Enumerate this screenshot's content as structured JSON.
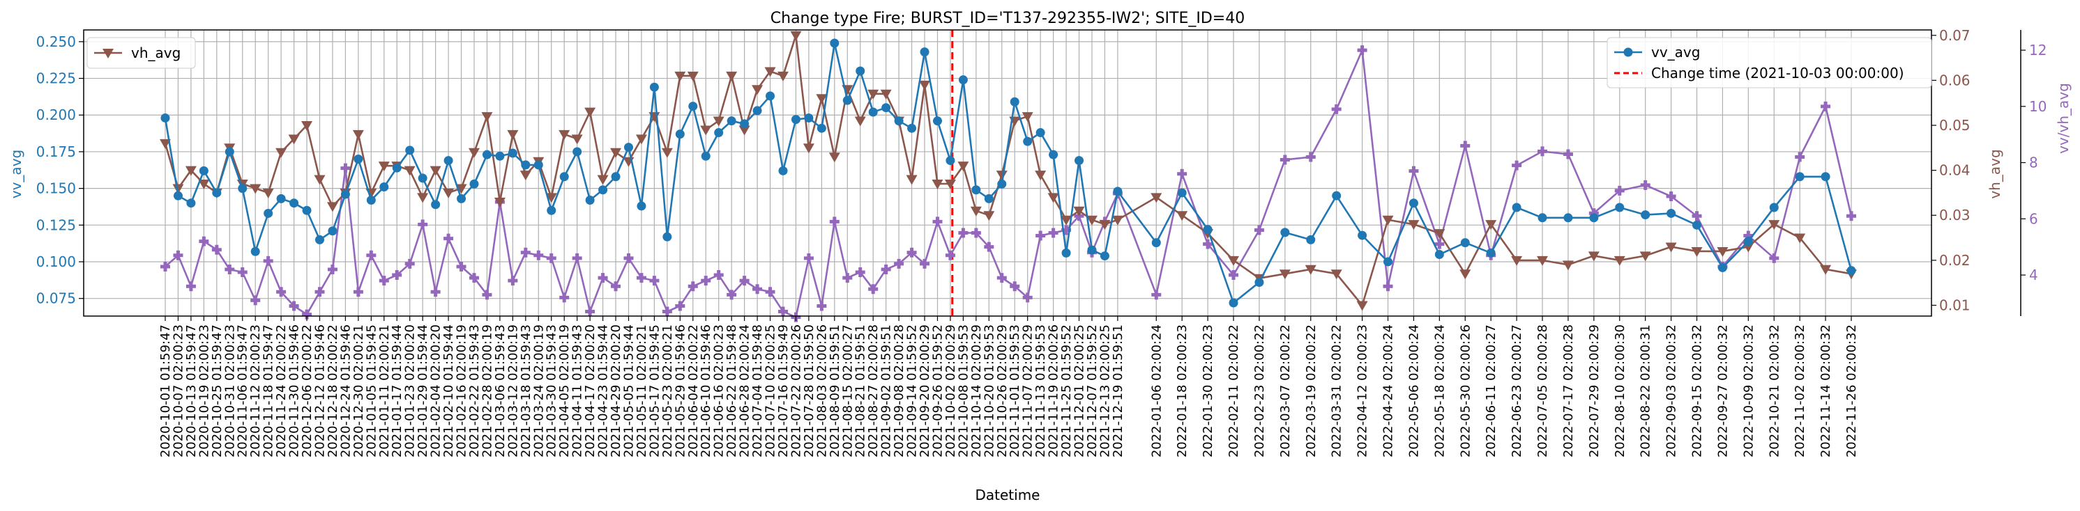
{
  "chart_data": {
    "type": "line",
    "title": "Change type Fire; BURST_ID='T137-292355-IW2'; SITE_ID=40",
    "xlabel": "Datetime",
    "ylabel_left": "vv_avg",
    "ylabel_right": "vh_avg",
    "ylabel_right2": "vv/vh_avg",
    "ylim_left": [
      0.063,
      0.258
    ],
    "ylim_right": [
      0.0076,
      0.0712
    ],
    "ylim_right2": [
      2.54,
      12.72
    ],
    "yticks_left": [
      "0.075",
      "0.100",
      "0.125",
      "0.150",
      "0.175",
      "0.200",
      "0.225",
      "0.250"
    ],
    "yticks_right": [
      "0.01",
      "0.02",
      "0.03",
      "0.04",
      "0.05",
      "0.06",
      "0.07"
    ],
    "yticks_right2": [
      "4",
      "6",
      "8",
      "10",
      "12"
    ],
    "grid": true,
    "change_time_label": "Change time (2021-10-03 00:00:00)",
    "change_time": "2021-10-03 00:00:00",
    "legend_left": "top-left",
    "legend_right": "top-right",
    "colors": {
      "vv": "#1f77b4",
      "vh": "#8c564b",
      "ratio": "#9467bd",
      "change": "#ff0000"
    },
    "dates": [
      "2020-10-01 01:59:47",
      "2020-10-07 02:00:23",
      "2020-10-13 01:59:47",
      "2020-10-19 02:00:23",
      "2020-10-25 01:59:47",
      "2020-10-31 02:00:23",
      "2020-11-06 01:59:47",
      "2020-11-12 02:00:23",
      "2020-11-18 01:59:47",
      "2020-11-24 02:00:22",
      "2020-11-30 01:59:46",
      "2020-12-06 02:00:22",
      "2020-12-12 01:59:46",
      "2020-12-18 02:00:22",
      "2020-12-24 01:59:46",
      "2020-12-30 02:00:21",
      "2021-01-05 01:59:45",
      "2021-01-11 02:00:21",
      "2021-01-17 01:59:44",
      "2021-01-23 02:00:20",
      "2021-01-29 01:59:44",
      "2021-02-04 02:00:20",
      "2021-02-10 01:59:44",
      "2021-02-16 02:00:19",
      "2021-02-22 01:59:43",
      "2021-02-28 02:00:19",
      "2021-03-06 01:59:43",
      "2021-03-12 02:00:19",
      "2021-03-18 01:59:43",
      "2021-03-24 02:00:19",
      "2021-03-30 01:59:43",
      "2021-04-05 02:00:19",
      "2021-04-11 01:59:43",
      "2021-04-17 02:00:20",
      "2021-04-23 01:59:44",
      "2021-04-29 02:00:20",
      "2021-05-05 01:59:44",
      "2021-05-11 02:00:21",
      "2021-05-17 01:59:45",
      "2021-05-23 02:00:21",
      "2021-05-29 01:59:46",
      "2021-06-04 02:00:22",
      "2021-06-10 01:59:46",
      "2021-06-16 02:00:23",
      "2021-06-22 01:59:48",
      "2021-06-28 02:00:24",
      "2021-07-04 01:59:48",
      "2021-07-10 02:00:25",
      "2021-07-16 01:59:49",
      "2021-07-22 02:00:26",
      "2021-07-28 01:59:50",
      "2021-08-03 02:00:26",
      "2021-08-09 01:59:51",
      "2021-08-15 02:00:27",
      "2021-08-21 01:59:51",
      "2021-08-27 02:00:28",
      "2021-09-02 01:59:51",
      "2021-09-08 02:00:28",
      "2021-09-14 01:59:52",
      "2021-09-20 02:00:29",
      "2021-09-26 01:59:52",
      "2021-10-02 02:00:29",
      "2021-10-08 01:59:53",
      "2021-10-14 02:00:29",
      "2021-10-20 01:59:53",
      "2021-10-26 02:00:29",
      "2021-11-01 01:59:53",
      "2021-11-07 02:00:29",
      "2021-11-13 01:59:53",
      "2021-11-19 02:00:26",
      "2021-11-25 01:59:52",
      "2021-12-01 02:00:25",
      "2021-12-07 01:59:52",
      "2021-12-13 02:00:25",
      "2021-12-19 01:59:51",
      "2022-01-06 02:00:24",
      "2022-01-18 02:00:23",
      "2022-01-30 02:00:23",
      "2022-02-11 02:00:22",
      "2022-02-23 02:00:22",
      "2022-03-07 02:00:22",
      "2022-03-19 02:00:22",
      "2022-03-31 02:00:22",
      "2022-04-12 02:00:23",
      "2022-04-24 02:00:24",
      "2022-05-06 02:00:24",
      "2022-05-18 02:00:24",
      "2022-05-30 02:00:26",
      "2022-06-11 02:00:27",
      "2022-06-23 02:00:27",
      "2022-07-05 02:00:28",
      "2022-07-17 02:00:28",
      "2022-07-29 02:00:29",
      "2022-08-10 02:00:30",
      "2022-08-22 02:00:31",
      "2022-09-03 02:00:32",
      "2022-09-15 02:00:32",
      "2022-09-27 02:00:32",
      "2022-10-09 02:00:32",
      "2022-10-21 02:00:32",
      "2022-11-02 02:00:32",
      "2022-11-14 02:00:32",
      "2022-11-26 02:00:32"
    ],
    "xtick_labels": [
      "2020-10-01 01:59:47",
      "2020-10-07 02:00:23",
      "2020-10-13 01:59:47",
      "2020-10-19 02:00:23",
      "2020-10-25 01:59:47",
      "2020-10-31 02:00:23",
      "2020-11-06 01:59:47",
      "2020-11-12 02:00:23",
      "2020-11-18 01:59:47",
      "2020-11-24 02:00:22",
      "2020-11-30 01:59:46",
      "2020-12-06 02:00:22",
      "2020-12-12 01:59:46",
      "2020-12-18 02:00:22",
      "2020-12-24 01:59:46",
      "2020-12-30 02:00:21",
      "2021-01-05 01:59:45",
      "2021-01-11 02:00:21",
      "2021-01-17 01:59:44",
      "2021-01-23 02:00:20",
      "2021-01-29 01:59:44",
      "2021-02-04 02:00:20",
      "2021-02-10 01:59:44",
      "2021-02-16 02:00:19",
      "2021-02-22 01:59:43",
      "2021-02-28 02:00:19",
      "2021-03-06 01:59:43",
      "2021-03-12 02:00:19",
      "2021-03-18 01:59:43",
      "2021-03-24 02:00:19",
      "2021-03-30 01:59:43",
      "2021-04-05 02:00:19",
      "2021-04-11 01:59:43",
      "2021-04-17 02:00:20",
      "2021-04-23 01:59:44",
      "2021-04-29 02:00:20",
      "2021-05-05 01:59:44",
      "2021-05-11 02:00:21",
      "2021-05-17 01:59:45",
      "2021-05-23 02:00:21",
      "2021-05-29 01:59:46",
      "2021-06-04 02:00:22",
      "2021-06-10 01:59:46",
      "2021-06-16 02:00:23",
      "2021-06-22 01:59:48",
      "2021-06-28 02:00:24",
      "2021-07-04 01:59:48",
      "2021-07-10 02:00:25",
      "2021-07-16 01:59:49",
      "2021-07-22 02:00:26",
      "2021-07-28 01:59:50",
      "2021-08-03 02:00:26",
      "2021-08-09 01:59:51",
      "2021-08-15 02:00:27",
      "2021-08-21 01:59:51",
      "2021-08-27 02:00:28",
      "2021-09-02 01:59:51",
      "2021-09-08 02:00:28",
      "2021-09-14 01:59:52",
      "2021-09-20 02:00:29",
      "2021-09-26 01:59:52",
      "2021-10-02 02:00:29",
      "2021-10-08 01:59:53",
      "2021-10-14 02:00:29",
      "2021-10-20 01:59:53",
      "2021-10-26 02:00:29",
      "2021-11-01 01:59:53",
      "2021-11-07 02:00:29",
      "2021-11-13 01:59:53",
      "2021-11-19 02:00:26",
      "2021-11-25 01:59:52",
      "2021-12-01 02:00:25",
      "2021-12-07 01:59:52",
      "2021-12-13 02:00:25",
      "2021-12-19 01:59:51",
      "2022-01-06 02:00:24",
      "2022-01-18 02:00:23",
      "2022-01-30 02:00:23",
      "2022-02-11 02:00:22",
      "2022-02-23 02:00:22",
      "2022-03-07 02:00:22",
      "2022-03-19 02:00:22",
      "2022-03-31 02:00:22",
      "2022-04-12 02:00:23",
      "2022-04-24 02:00:24",
      "2022-05-06 02:00:24",
      "2022-05-18 02:00:24",
      "2022-05-30 02:00:26",
      "2022-06-11 02:00:27",
      "2022-06-23 02:00:27",
      "2022-07-05 02:00:28",
      "2022-07-17 02:00:28",
      "2022-07-29 02:00:29",
      "2022-08-10 02:00:30",
      "2022-08-22 02:00:31",
      "2022-09-03 02:00:32",
      "2022-09-15 02:00:32",
      "2022-09-27 02:00:32",
      "2022-10-09 02:00:32",
      "2022-10-21 02:00:32",
      "2022-11-02 02:00:32",
      "2022-11-14 02:00:32",
      "2022-11-26 02:00:32"
    ],
    "series": [
      {
        "name": "vv_avg",
        "axis": "left",
        "marker": "circle",
        "values": [
          0.198,
          0.145,
          0.14,
          0.162,
          0.147,
          0.175,
          0.15,
          0.107,
          0.133,
          0.143,
          0.14,
          0.135,
          0.115,
          0.121,
          0.146,
          0.17,
          0.142,
          0.151,
          0.164,
          0.176,
          0.157,
          0.139,
          0.169,
          0.143,
          0.153,
          0.173,
          0.172,
          0.174,
          0.166,
          0.166,
          0.135,
          0.158,
          0.175,
          0.142,
          0.149,
          0.158,
          0.178,
          0.138,
          0.219,
          0.117,
          0.187,
          0.206,
          0.172,
          0.188,
          0.196,
          0.194,
          0.203,
          0.213,
          0.162,
          0.197,
          0.198,
          0.191,
          0.249,
          0.21,
          0.23,
          0.202,
          0.205,
          0.196,
          0.191,
          0.243,
          0.196,
          0.169,
          0.224,
          0.149,
          0.143,
          0.153,
          0.209,
          0.182,
          0.188,
          0.173,
          0.106,
          0.169,
          0.108,
          0.104,
          0.148,
          0.113,
          0.147,
          0.122,
          0.072,
          0.086,
          0.12,
          0.115,
          0.145,
          0.118,
          0.1,
          0.14,
          0.105,
          0.113,
          0.106,
          0.137,
          0.13,
          0.13,
          0.13,
          0.137,
          0.132,
          0.133,
          0.125,
          0.096,
          0.114,
          0.137,
          0.158,
          0.158,
          0.094
        ]
      },
      {
        "name": "vh_avg",
        "axis": "right",
        "marker": "triangle-down",
        "values": [
          0.046,
          0.036,
          0.04,
          0.037,
          0.035,
          0.045,
          0.037,
          0.036,
          0.035,
          0.044,
          0.047,
          0.05,
          0.038,
          0.032,
          0.035,
          0.048,
          0.035,
          0.041,
          0.041,
          0.04,
          0.034,
          0.04,
          0.035,
          0.036,
          0.044,
          0.052,
          0.033,
          0.048,
          0.039,
          0.042,
          0.034,
          0.048,
          0.047,
          0.053,
          0.038,
          0.044,
          0.042,
          0.047,
          0.052,
          0.044,
          0.061,
          0.061,
          0.049,
          0.051,
          0.061,
          0.049,
          0.058,
          0.062,
          0.061,
          0.07,
          0.045,
          0.056,
          0.043,
          0.058,
          0.051,
          0.057,
          0.057,
          0.051,
          0.038,
          0.059,
          0.037,
          0.037,
          0.041,
          0.031,
          0.03,
          0.039,
          0.051,
          0.052,
          0.039,
          0.034,
          0.029,
          0.031,
          0.029,
          0.028,
          0.029,
          0.034,
          0.03,
          0.026,
          0.02,
          0.016,
          0.017,
          0.018,
          0.017,
          0.01,
          0.029,
          0.028,
          0.026,
          0.017,
          0.028,
          0.02,
          0.02,
          0.019,
          0.021,
          0.02,
          0.021,
          0.023,
          0.022,
          0.022,
          0.023,
          0.028,
          0.025,
          0.018,
          0.017
        ]
      },
      {
        "name": "vv/vh_avg",
        "axis": "right2",
        "marker": "plus",
        "values": [
          4.3,
          4.7,
          3.6,
          5.2,
          4.9,
          4.2,
          4.1,
          3.1,
          4.5,
          3.4,
          2.9,
          2.6,
          3.4,
          4.2,
          7.8,
          3.4,
          4.7,
          3.8,
          4.0,
          4.4,
          5.8,
          3.4,
          5.3,
          4.3,
          3.9,
          3.3,
          6.6,
          3.8,
          4.8,
          4.7,
          4.6,
          3.2,
          4.6,
          2.7,
          3.9,
          3.6,
          4.6,
          3.9,
          3.8,
          2.7,
          2.9,
          3.6,
          3.8,
          4.0,
          3.3,
          3.8,
          3.5,
          3.4,
          2.7,
          2.5,
          4.6,
          2.9,
          5.9,
          3.9,
          4.1,
          3.5,
          4.2,
          4.4,
          4.8,
          4.4,
          5.9,
          4.7,
          5.5,
          5.5,
          5.0,
          3.9,
          3.6,
          3.2,
          5.4,
          5.5,
          5.6,
          6.1,
          4.8,
          5.9,
          6.9,
          3.3,
          7.6,
          5.1,
          4.0,
          5.6,
          8.1,
          8.2,
          9.9,
          12.0,
          3.6,
          7.7,
          5.1,
          8.6,
          4.7,
          7.9,
          8.4,
          8.3,
          6.2,
          7.0,
          7.2,
          6.8,
          6.1,
          4.3,
          5.4,
          4.6,
          8.2,
          10.0,
          6.1
        ]
      }
    ]
  }
}
